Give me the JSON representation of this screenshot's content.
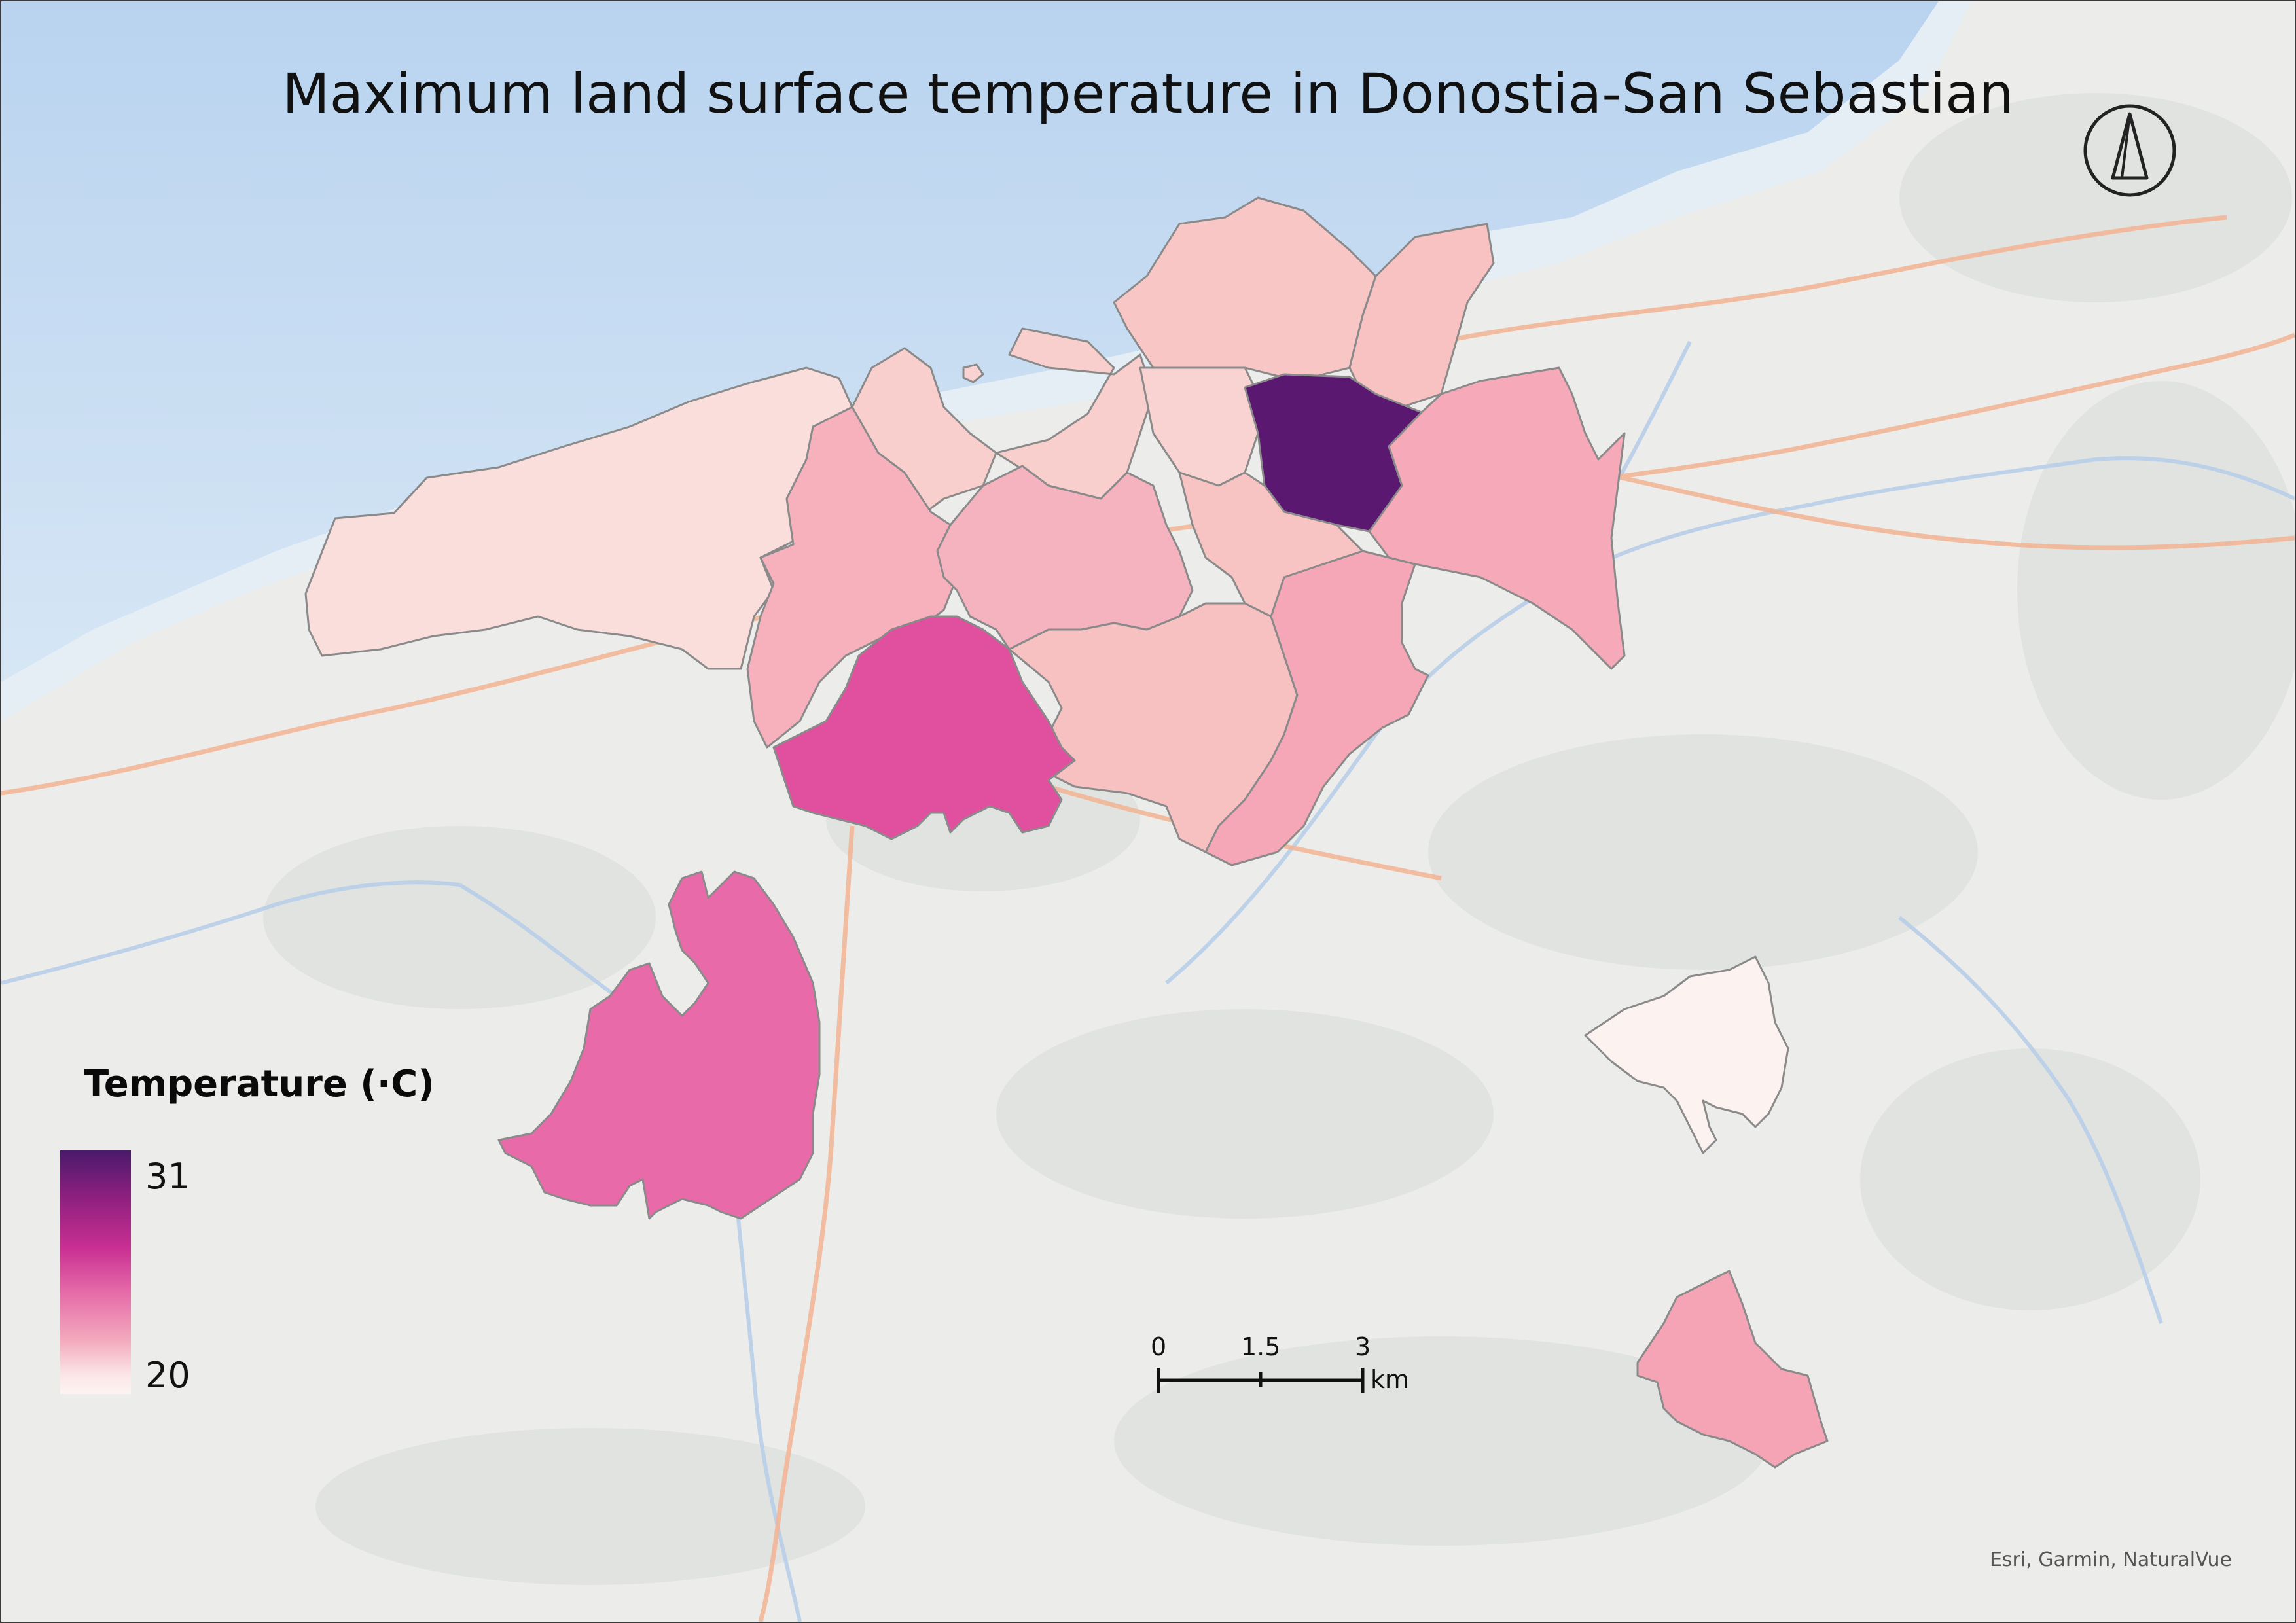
{
  "map": {
    "title": "Maximum land surface temperature in Donostia-San Sebastian",
    "north_arrow": "north-arrow-icon",
    "legend": {
      "title": "Temperature (·C)",
      "max_label": "31",
      "min_label": "20",
      "max_color": "#4a1a6a",
      "min_color": "#fdf4f3"
    },
    "scale_bar": {
      "labels": [
        "0",
        "1.5",
        "3"
      ],
      "unit": "km"
    },
    "attribution": "Esri, Garmin, NaturalVue",
    "colors": {
      "sea": "#c9ddf1",
      "land": "#ecedea",
      "roads": "#f3b393",
      "rivers": "#b8cde8",
      "district_outline": "#8a8a8a"
    }
  }
}
